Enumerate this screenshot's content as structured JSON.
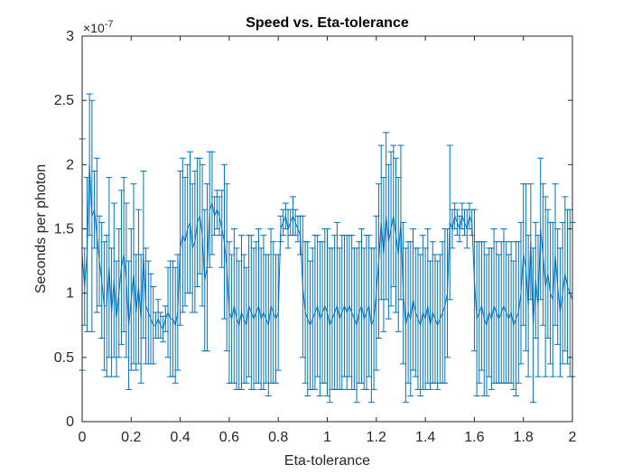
{
  "chart_data": {
    "type": "line",
    "title": "Speed vs. Eta-tolerance",
    "xlabel": "Eta-tolerance",
    "ylabel": "Seconds per photon",
    "exponent_label": "×10",
    "exponent_power": "-7",
    "xlim": [
      0,
      2
    ],
    "ylim": [
      0,
      3
    ],
    "y_scale_factor": 1e-07,
    "grid": false,
    "x_ticks": [
      0,
      0.2,
      0.4,
      0.6,
      0.8,
      1,
      1.2,
      1.4,
      1.6,
      1.8,
      2
    ],
    "x_tick_labels": [
      "0",
      "0.2",
      "0.4",
      "0.6",
      "0.8",
      "1",
      "1.2",
      "1.4",
      "1.6",
      "1.8",
      "2"
    ],
    "y_ticks": [
      0,
      0.5,
      1,
      1.5,
      2,
      2.5,
      3
    ],
    "y_tick_labels": [
      "0",
      "0.5",
      "1",
      "1.5",
      "2",
      "2.5",
      "3"
    ],
    "series": [
      {
        "color": "#0072BD",
        "x": [
          0,
          0.01,
          0.02,
          0.03,
          0.04,
          0.05,
          0.06,
          0.07,
          0.08,
          0.09,
          0.1,
          0.11,
          0.12,
          0.13,
          0.14,
          0.15,
          0.16,
          0.17,
          0.18,
          0.19,
          0.2,
          0.21,
          0.22,
          0.23,
          0.24,
          0.25,
          0.26,
          0.27,
          0.28,
          0.29,
          0.3,
          0.31,
          0.32,
          0.33,
          0.34,
          0.35,
          0.36,
          0.37,
          0.38,
          0.39,
          0.4,
          0.41,
          0.42,
          0.43,
          0.44,
          0.45,
          0.46,
          0.47,
          0.48,
          0.49,
          0.5,
          0.51,
          0.52,
          0.53,
          0.54,
          0.55,
          0.56,
          0.57,
          0.58,
          0.59,
          0.6,
          0.61,
          0.62,
          0.63,
          0.64,
          0.65,
          0.66,
          0.67,
          0.68,
          0.69,
          0.7,
          0.71,
          0.72,
          0.73,
          0.74,
          0.75,
          0.76,
          0.77,
          0.78,
          0.79,
          0.8,
          0.81,
          0.82,
          0.83,
          0.84,
          0.85,
          0.86,
          0.87,
          0.88,
          0.89,
          0.9,
          0.91,
          0.92,
          0.93,
          0.94,
          0.95,
          0.96,
          0.97,
          0.98,
          0.99,
          1,
          1.01,
          1.02,
          1.03,
          1.04,
          1.05,
          1.06,
          1.07,
          1.08,
          1.09,
          1.1,
          1.11,
          1.12,
          1.13,
          1.14,
          1.15,
          1.16,
          1.17,
          1.18,
          1.19,
          1.2,
          1.21,
          1.22,
          1.23,
          1.24,
          1.25,
          1.26,
          1.27,
          1.28,
          1.29,
          1.3,
          1.31,
          1.32,
          1.33,
          1.34,
          1.35,
          1.36,
          1.37,
          1.38,
          1.39,
          1.4,
          1.41,
          1.42,
          1.43,
          1.44,
          1.45,
          1.46,
          1.47,
          1.48,
          1.49,
          1.5,
          1.51,
          1.52,
          1.53,
          1.54,
          1.55,
          1.56,
          1.57,
          1.58,
          1.59,
          1.6,
          1.61,
          1.62,
          1.63,
          1.64,
          1.65,
          1.66,
          1.67,
          1.68,
          1.69,
          1.7,
          1.71,
          1.72,
          1.73,
          1.74,
          1.75,
          1.76,
          1.77,
          1.78,
          1.79,
          1.8,
          1.81,
          1.82,
          1.83,
          1.84,
          1.85,
          1.86,
          1.87,
          1.88,
          1.89,
          1.9,
          1.91,
          1.92,
          1.93,
          1.94,
          1.95,
          1.96,
          1.97,
          1.98,
          1.99,
          2
        ],
        "y": [
          1.3,
          1.05,
          1.3,
          2.0,
          1.6,
          1.65,
          1.45,
          1.25,
          1.1,
          0.9,
          0.9,
          1.2,
          0.85,
          1.1,
          0.8,
          1.0,
          1.2,
          1.3,
          1.1,
          0.75,
          0.95,
          1.15,
          0.85,
          1.05,
          0.8,
          1.3,
          0.9,
          0.85,
          0.8,
          0.75,
          0.75,
          0.8,
          0.75,
          0.72,
          0.8,
          0.85,
          0.8,
          0.8,
          0.75,
          0.85,
          1.35,
          1.45,
          1.4,
          1.5,
          1.55,
          1.35,
          1.4,
          1.55,
          1.6,
          1.45,
          1.1,
          1.2,
          1.65,
          1.7,
          1.6,
          1.65,
          1.6,
          1.5,
          1.4,
          1.2,
          0.85,
          0.8,
          0.9,
          0.8,
          0.75,
          0.85,
          0.8,
          0.75,
          0.9,
          0.85,
          0.8,
          0.85,
          0.9,
          0.8,
          0.85,
          0.8,
          0.75,
          0.9,
          0.85,
          0.8,
          0.85,
          1.5,
          1.55,
          1.6,
          1.5,
          1.55,
          1.6,
          1.55,
          1.5,
          1.45,
          1.05,
          0.85,
          0.8,
          0.75,
          0.8,
          0.85,
          0.9,
          0.8,
          0.85,
          0.9,
          0.85,
          0.75,
          0.8,
          0.85,
          0.9,
          0.8,
          0.85,
          0.9,
          0.85,
          0.9,
          0.85,
          0.8,
          0.75,
          0.85,
          0.9,
          0.8,
          0.85,
          0.9,
          0.75,
          0.8,
          1.0,
          1.25,
          1.55,
          1.3,
          1.6,
          1.4,
          1.5,
          1.6,
          1.45,
          1.3,
          1.55,
          1.0,
          0.75,
          0.85,
          0.8,
          0.95,
          0.85,
          0.8,
          0.75,
          0.85,
          0.8,
          0.9,
          0.75,
          0.85,
          0.8,
          0.75,
          0.8,
          0.85,
          0.9,
          1.0,
          1.55,
          1.5,
          1.6,
          1.55,
          1.5,
          1.6,
          1.55,
          1.5,
          1.6,
          1.55,
          1.1,
          0.8,
          0.85,
          0.9,
          0.8,
          0.75,
          0.85,
          0.8,
          0.9,
          0.85,
          0.8,
          0.85,
          0.9,
          0.85,
          0.8,
          0.85,
          0.75,
          0.8,
          0.85,
          1.0,
          1.3,
          1.2,
          0.9,
          1.4,
          0.75,
          1.1,
          0.9,
          1.5,
          1.3,
          1.05,
          1.15,
          1.0,
          0.95,
          1.3,
          1.05,
          0.85,
          1.0,
          1.15,
          1.05,
          1.0,
          0.95
        ],
        "err": [
          0.9,
          0.3,
          0.6,
          0.55,
          0.9,
          0.3,
          0.6,
          0.35,
          0.45,
          0.5,
          0.55,
          0.7,
          0.5,
          0.6,
          0.45,
          0.5,
          0.6,
          0.6,
          0.6,
          0.5,
          0.55,
          0.7,
          0.45,
          0.6,
          0.5,
          0.65,
          0.45,
          0.4,
          0.35,
          0.3,
          0.1,
          0.15,
          0.1,
          0.1,
          0.1,
          0.35,
          0.45,
          0.45,
          0.45,
          0.45,
          0.6,
          0.6,
          0.5,
          0.5,
          0.55,
          0.5,
          0.55,
          0.5,
          0.45,
          0.55,
          0.55,
          0.65,
          0.45,
          0.4,
          0.15,
          0.15,
          0.15,
          0.3,
          0.6,
          0.65,
          0.55,
          0.5,
          0.6,
          0.55,
          0.5,
          0.6,
          0.5,
          0.45,
          0.55,
          0.6,
          0.55,
          0.55,
          0.6,
          0.55,
          0.6,
          0.5,
          0.55,
          0.6,
          0.55,
          0.5,
          0.45,
          0.1,
          0.1,
          0.1,
          0.15,
          0.1,
          0.15,
          0.1,
          0.1,
          0.15,
          0.55,
          0.55,
          0.6,
          0.5,
          0.55,
          0.6,
          0.55,
          0.6,
          0.55,
          0.6,
          0.65,
          0.6,
          0.55,
          0.6,
          0.65,
          0.55,
          0.6,
          0.55,
          0.6,
          0.55,
          0.6,
          0.55,
          0.6,
          0.55,
          0.6,
          0.55,
          0.6,
          0.55,
          0.6,
          0.55,
          0.6,
          0.6,
          0.6,
          0.6,
          0.65,
          0.6,
          0.6,
          0.55,
          0.6,
          0.6,
          0.6,
          0.55,
          0.6,
          0.55,
          0.6,
          0.55,
          0.5,
          0.55,
          0.55,
          0.6,
          0.55,
          0.6,
          0.5,
          0.55,
          0.5,
          0.5,
          0.5,
          0.55,
          0.6,
          0.5,
          0.6,
          0.15,
          0.1,
          0.1,
          0.1,
          0.1,
          0.1,
          0.15,
          0.1,
          0.1,
          0.55,
          0.6,
          0.55,
          0.5,
          0.6,
          0.55,
          0.5,
          0.55,
          0.6,
          0.55,
          0.5,
          0.55,
          0.6,
          0.55,
          0.5,
          0.55,
          0.5,
          0.6,
          0.55,
          0.55,
          0.55,
          0.65,
          0.55,
          0.45,
          0.6,
          0.45,
          0.55,
          0.55,
          0.55,
          0.7,
          0.5,
          0.55,
          0.6,
          0.55,
          0.45,
          0.5,
          0.55,
          0.6,
          0.6,
          0.65,
          0.6
        ]
      }
    ]
  }
}
